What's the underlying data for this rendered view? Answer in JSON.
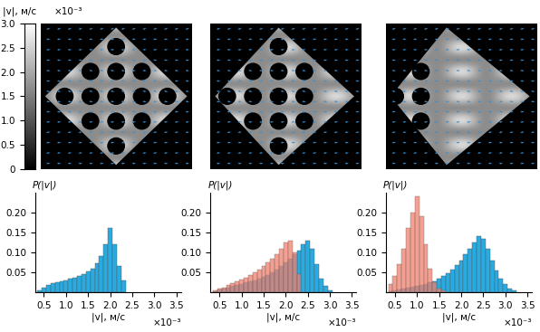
{
  "colorbar": {
    "label": "|v|, м/с",
    "multiplier": "×10⁻³",
    "range": [
      0,
      3.0
    ],
    "ticks": [
      {
        "value": 0,
        "label": "0"
      },
      {
        "value": 0.5,
        "label": "0.5"
      },
      {
        "value": 1.0,
        "label": "1.0"
      },
      {
        "value": 1.5,
        "label": "1.5"
      },
      {
        "value": 2.0,
        "label": "2.0"
      },
      {
        "value": 2.5,
        "label": "2.5"
      },
      {
        "value": 3.0,
        "label": "3.0"
      }
    ]
  },
  "chart_data": [
    {
      "type": "histogram",
      "x_label": "|v|, м/с",
      "x_multiplier": "×10⁻³",
      "y_label": "P(|v|)",
      "xlim": [
        0.3,
        3.6
      ],
      "ylim": [
        0,
        0.25
      ],
      "xticks": [
        {
          "value": 0.5,
          "label": "0.5"
        },
        {
          "value": 1.0,
          "label": "1.0"
        },
        {
          "value": 1.5,
          "label": "1.5"
        },
        {
          "value": 2.0,
          "label": "2.0"
        },
        {
          "value": 2.5,
          "label": "2.5"
        },
        {
          "value": 3.0,
          "label": "3.0"
        },
        {
          "value": 3.5,
          "label": "3.5"
        }
      ],
      "yticks": [
        {
          "value": 0.05,
          "label": "0.05"
        },
        {
          "value": 0.1,
          "label": "0.10"
        },
        {
          "value": 0.15,
          "label": "0.15"
        },
        {
          "value": 0.2,
          "label": "0.20"
        }
      ],
      "series": [
        {
          "color": "#29abe2",
          "bins": [
            0.35,
            0.45,
            0.55,
            0.65,
            0.75,
            0.85,
            0.95,
            1.05,
            1.15,
            1.25,
            1.35,
            1.45,
            1.55,
            1.65,
            1.75,
            1.85,
            1.95,
            2.05,
            2.15,
            2.25,
            2.35
          ],
          "counts": [
            0.005,
            0.012,
            0.018,
            0.022,
            0.025,
            0.028,
            0.03,
            0.033,
            0.036,
            0.04,
            0.045,
            0.052,
            0.06,
            0.072,
            0.09,
            0.12,
            0.16,
            0.12,
            0.065,
            0.03
          ]
        }
      ]
    },
    {
      "type": "histogram",
      "x_label": "|v|, м/с",
      "x_multiplier": "×10⁻³",
      "y_label": "P(|v|)",
      "xlim": [
        0.3,
        3.6
      ],
      "ylim": [
        0,
        0.25
      ],
      "xticks": [
        {
          "value": 0.5,
          "label": "0.5"
        },
        {
          "value": 1.0,
          "label": "1.0"
        },
        {
          "value": 1.5,
          "label": "1.5"
        },
        {
          "value": 2.0,
          "label": "2.0"
        },
        {
          "value": 2.5,
          "label": "2.5"
        },
        {
          "value": 3.0,
          "label": "3.0"
        },
        {
          "value": 3.5,
          "label": "3.5"
        }
      ],
      "yticks": [
        {
          "value": 0.05,
          "label": "0.05"
        },
        {
          "value": 0.1,
          "label": "0.10"
        },
        {
          "value": 0.15,
          "label": "0.15"
        },
        {
          "value": 0.2,
          "label": "0.20"
        }
      ],
      "series": [
        {
          "color": "#29abe2",
          "bins": [
            0.35,
            0.45,
            0.55,
            0.65,
            0.75,
            0.85,
            0.95,
            1.05,
            1.15,
            1.25,
            1.35,
            1.45,
            1.55,
            1.65,
            1.75,
            1.85,
            1.95,
            2.05,
            2.15,
            2.25,
            2.35,
            2.45,
            2.55,
            2.65,
            2.75,
            2.85,
            2.95,
            3.05
          ],
          "counts": [
            0.003,
            0.006,
            0.009,
            0.012,
            0.015,
            0.018,
            0.021,
            0.024,
            0.027,
            0.03,
            0.034,
            0.038,
            0.043,
            0.05,
            0.057,
            0.065,
            0.075,
            0.085,
            0.095,
            0.105,
            0.12,
            0.13,
            0.11,
            0.07,
            0.035,
            0.015,
            0.005
          ]
        },
        {
          "color": "#f0806e",
          "bins": [
            0.35,
            0.45,
            0.55,
            0.65,
            0.75,
            0.85,
            0.95,
            1.05,
            1.15,
            1.25,
            1.35,
            1.45,
            1.55,
            1.65,
            1.75,
            1.85,
            1.95,
            2.05,
            2.15,
            2.25,
            2.35
          ],
          "counts": [
            0.004,
            0.008,
            0.012,
            0.017,
            0.022,
            0.027,
            0.032,
            0.037,
            0.043,
            0.05,
            0.057,
            0.065,
            0.074,
            0.084,
            0.095,
            0.11,
            0.125,
            0.13,
            0.1,
            0.045
          ]
        }
      ]
    },
    {
      "type": "histogram",
      "x_label": "|v|, м/с",
      "x_multiplier": "×10⁻³",
      "y_label": "P(|v|)",
      "xlim": [
        0.3,
        3.6
      ],
      "ylim": [
        0,
        0.25
      ],
      "xticks": [
        {
          "value": 0.5,
          "label": "0.5"
        },
        {
          "value": 1.0,
          "label": "1.0"
        },
        {
          "value": 1.5,
          "label": "1.5"
        },
        {
          "value": 2.0,
          "label": "2.0"
        },
        {
          "value": 2.5,
          "label": "2.5"
        },
        {
          "value": 3.0,
          "label": "3.0"
        },
        {
          "value": 3.5,
          "label": "3.5"
        }
      ],
      "yticks": [
        {
          "value": 0.05,
          "label": "0.05"
        },
        {
          "value": 0.1,
          "label": "0.10"
        },
        {
          "value": 0.15,
          "label": "0.15"
        },
        {
          "value": 0.2,
          "label": "0.20"
        }
      ],
      "series": [
        {
          "color": "#29abe2",
          "bins": [
            0.35,
            0.45,
            0.55,
            0.65,
            0.75,
            0.85,
            0.95,
            1.05,
            1.15,
            1.25,
            1.35,
            1.45,
            1.55,
            1.65,
            1.75,
            1.85,
            1.95,
            2.05,
            2.15,
            2.25,
            2.35,
            2.45,
            2.55,
            2.65,
            2.75,
            2.85,
            2.95,
            3.05,
            3.15,
            3.25
          ],
          "counts": [
            0.003,
            0.005,
            0.007,
            0.009,
            0.011,
            0.013,
            0.015,
            0.017,
            0.02,
            0.024,
            0.028,
            0.033,
            0.04,
            0.048,
            0.057,
            0.068,
            0.08,
            0.095,
            0.11,
            0.125,
            0.14,
            0.135,
            0.11,
            0.08,
            0.055,
            0.035,
            0.02,
            0.01,
            0.004
          ]
        },
        {
          "color": "#f0806e",
          "bins": [
            0.35,
            0.45,
            0.55,
            0.65,
            0.75,
            0.85,
            0.95,
            1.05,
            1.15,
            1.25,
            1.35,
            1.45,
            1.55,
            1.65
          ],
          "counts": [
            0.02,
            0.04,
            0.07,
            0.11,
            0.16,
            0.2,
            0.24,
            0.19,
            0.12,
            0.06,
            0.025,
            0.01,
            0.004
          ]
        }
      ]
    }
  ]
}
